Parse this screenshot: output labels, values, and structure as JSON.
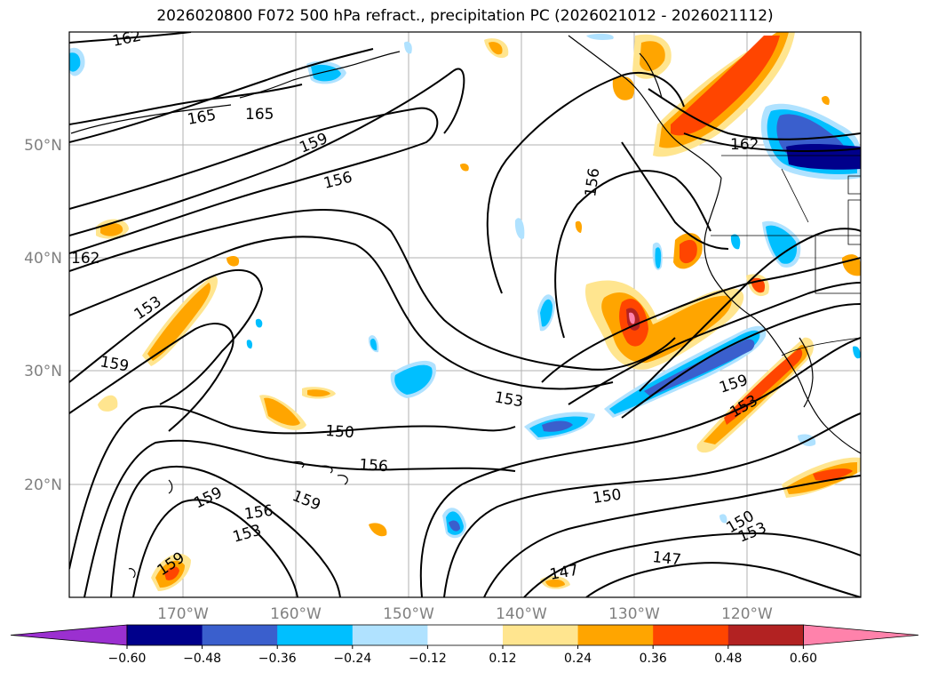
{
  "title": "2026020800 F072 500 hPa refract., precipitation PC (2026021012 - 2026021112)",
  "lat_labels": [
    "50°N",
    "40°N",
    "30°N",
    "20°N"
  ],
  "lon_labels": [
    "170°W",
    "160°W",
    "150°W",
    "140°W",
    "130°W",
    "120°W"
  ],
  "colorbar": {
    "ticks": [
      "−0.60",
      "−0.48",
      "−0.36",
      "−0.24",
      "−0.12",
      "0.12",
      "0.24",
      "0.36",
      "0.48",
      "0.60"
    ],
    "colors": [
      "#9b30d0",
      "#00008b",
      "#3a5fcd",
      "#00bfff",
      "#b0e2ff",
      "#ffffff",
      "#ffe58f",
      "#ffa500",
      "#ff4500",
      "#b22222",
      "#ff82ab"
    ]
  },
  "contour_labels": [
    "162",
    "165",
    "165",
    "159",
    "156",
    "156",
    "162",
    "162",
    "153",
    "159",
    "153",
    "150",
    "156",
    "159",
    "159",
    "153",
    "150",
    "147",
    "150",
    "153",
    "159",
    "153",
    "159",
    "156",
    "153",
    "147"
  ]
}
